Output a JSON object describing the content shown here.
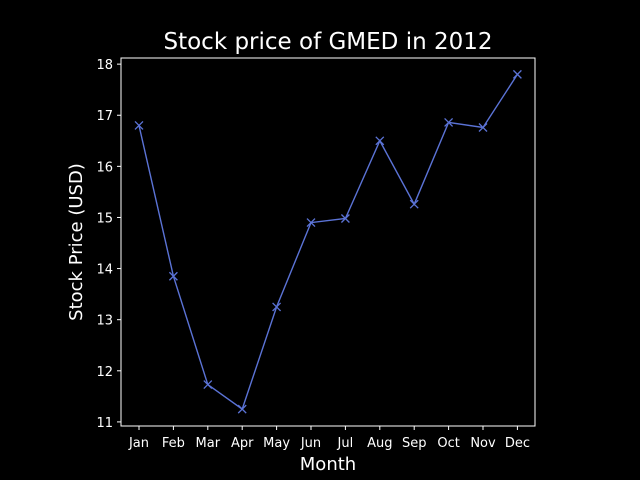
{
  "chart_data": {
    "type": "line",
    "title": "Stock price of GMED in 2012",
    "xlabel": "Month",
    "ylabel": "Stock Price (USD)",
    "categories": [
      "Jan",
      "Feb",
      "Mar",
      "Apr",
      "May",
      "Jun",
      "Jul",
      "Aug",
      "Sep",
      "Oct",
      "Nov",
      "Dec"
    ],
    "series": [
      {
        "values": [
          16.8,
          13.85,
          11.73,
          11.25,
          13.25,
          14.9,
          14.98,
          16.5,
          15.26,
          16.86,
          16.76,
          17.8
        ],
        "color": "#5b73d6",
        "marker": "x"
      }
    ],
    "ylim": [
      10.92,
      18.12
    ],
    "yticks": [
      11,
      12,
      13,
      14,
      15,
      16,
      17,
      18
    ],
    "grid": false,
    "background": "#000000",
    "text_color": "#ffffff"
  }
}
